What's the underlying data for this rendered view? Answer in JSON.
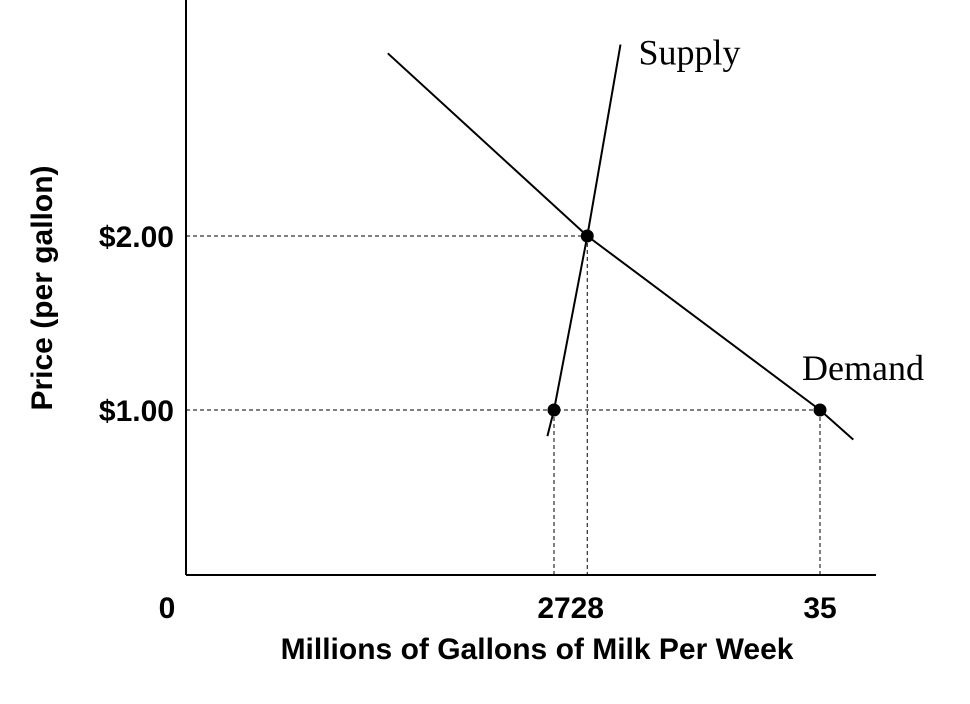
{
  "chart_data": {
    "type": "line",
    "title": "",
    "xlabel": "Millions of Gallons of Milk Per Week",
    "ylabel": "Price (per gallon)",
    "origin_label": "0",
    "x_ticks": [
      {
        "value": 27,
        "label": "27"
      },
      {
        "value": 28,
        "label": "28"
      },
      {
        "value": 35,
        "label": "35"
      }
    ],
    "y_ticks": [
      {
        "value": 1.0,
        "label": "$1.00"
      },
      {
        "value": 2.0,
        "label": "$2.00"
      }
    ],
    "series": [
      {
        "name": "Supply",
        "points": [
          {
            "x": 26.8,
            "y": 0.85
          },
          {
            "x": 27,
            "y": 1.0
          },
          {
            "x": 28,
            "y": 2.0
          },
          {
            "x": 29.0,
            "y": 3.1
          }
        ]
      },
      {
        "name": "Demand",
        "points": [
          {
            "x": 22.0,
            "y": 3.05
          },
          {
            "x": 28,
            "y": 2.0
          },
          {
            "x": 35,
            "y": 1.0
          },
          {
            "x": 36.0,
            "y": 0.83
          }
        ]
      }
    ],
    "marked_points": [
      {
        "x": 27,
        "y": 1.0
      },
      {
        "x": 28,
        "y": 2.0
      },
      {
        "x": 35,
        "y": 1.0
      }
    ],
    "guides": [
      {
        "x": 27,
        "y": 1.0
      },
      {
        "x": 28,
        "y": 2.0
      },
      {
        "x": 35,
        "y": 1.0
      }
    ],
    "grid": false,
    "legend": "none",
    "colors": {
      "line": "#000000",
      "background": "#ffffff"
    }
  }
}
